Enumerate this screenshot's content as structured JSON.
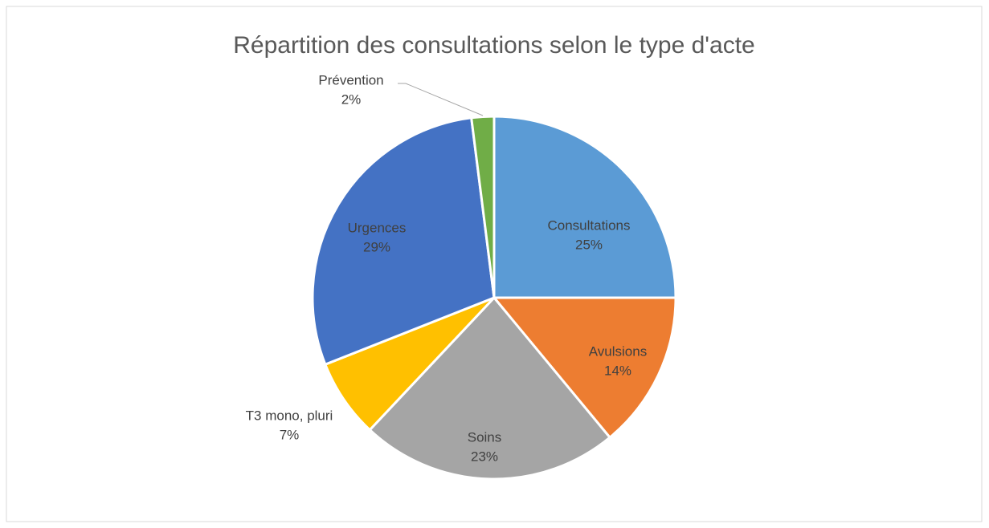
{
  "chart_data": {
    "type": "pie",
    "title": "Répartition des consultations selon le type d'acte",
    "categories": [
      "Consultations",
      "Avulsions",
      "Soins",
      "T3 mono, pluri",
      "Urgences",
      "Prévention"
    ],
    "values": [
      25,
      14,
      23,
      7,
      29,
      2
    ],
    "value_labels": [
      "25%",
      "14%",
      "23%",
      "7%",
      "29%",
      "2%"
    ],
    "colors": [
      "#5b9bd5",
      "#ed7d31",
      "#a5a5a5",
      "#ffc000",
      "#4472c4",
      "#70ad47"
    ]
  }
}
